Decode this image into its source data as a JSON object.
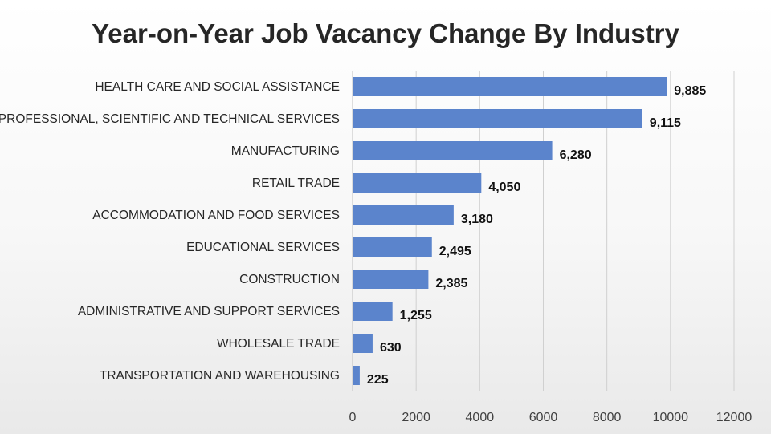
{
  "chart_data": {
    "type": "bar",
    "orientation": "horizontal",
    "title": "Year-on-Year Job Vacancy Change By Industry",
    "xlabel": "",
    "ylabel": "",
    "categories": [
      "HEALTH CARE AND SOCIAL ASSISTANCE",
      "PROFESSIONAL, SCIENTIFIC AND TECHNICAL SERVICES",
      "MANUFACTURING",
      "RETAIL TRADE",
      "ACCOMMODATION AND FOOD SERVICES",
      "EDUCATIONAL SERVICES",
      "CONSTRUCTION",
      "ADMINISTRATIVE AND SUPPORT SERVICES",
      "WHOLESALE TRADE",
      "TRANSPORTATION AND WAREHOUSING"
    ],
    "values": [
      9885,
      9115,
      6280,
      4050,
      3180,
      2495,
      2385,
      1255,
      630,
      225
    ],
    "data_labels": [
      "9,885",
      "9,115",
      "6,280",
      "4,050",
      "3,180",
      "2,495",
      "2,385",
      "1,255",
      "630",
      "225"
    ],
    "xlim": [
      0,
      12000
    ],
    "x_ticks": [
      0,
      2000,
      4000,
      6000,
      8000,
      10000,
      12000
    ],
    "x_tick_labels": [
      "0",
      "2000",
      "4000",
      "6000",
      "8000",
      "10000",
      "12000"
    ],
    "grid": "vertical",
    "legend": "none",
    "bar_color": "#5b84cc"
  }
}
